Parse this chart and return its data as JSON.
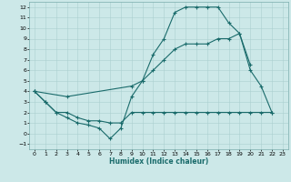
{
  "xlabel": "Humidex (Indice chaleur)",
  "bg_color": "#cce8e8",
  "grid_color": "#aacfcf",
  "line_color": "#1a6b6b",
  "xlim": [
    -0.5,
    23.5
  ],
  "ylim": [
    -1.5,
    12.5
  ],
  "xticks": [
    0,
    1,
    2,
    3,
    4,
    5,
    6,
    7,
    8,
    9,
    10,
    11,
    12,
    13,
    14,
    15,
    16,
    17,
    18,
    19,
    20,
    21,
    22,
    23
  ],
  "yticks": [
    -1,
    0,
    1,
    2,
    3,
    4,
    5,
    6,
    7,
    8,
    9,
    10,
    11,
    12
  ],
  "line1_x": [
    0,
    1,
    2,
    3,
    4,
    5,
    6,
    7,
    8,
    9,
    10,
    11,
    12,
    13,
    14,
    15,
    16,
    17,
    18,
    19,
    20,
    21,
    22
  ],
  "line1_y": [
    4.0,
    3.0,
    2.0,
    1.5,
    1.0,
    0.8,
    0.5,
    -0.5,
    0.5,
    3.5,
    5.0,
    7.5,
    9.0,
    11.5,
    12.0,
    12.0,
    12.0,
    12.0,
    10.5,
    9.5,
    6.0,
    4.5,
    2.0
  ],
  "line2_x": [
    0,
    3,
    9,
    10,
    11,
    12,
    13,
    14,
    15,
    16,
    17,
    18,
    19,
    20
  ],
  "line2_y": [
    4.0,
    3.5,
    4.5,
    5.0,
    6.0,
    7.0,
    8.0,
    8.5,
    8.5,
    8.5,
    9.0,
    9.0,
    9.5,
    6.5
  ],
  "line3_x": [
    0,
    1,
    2,
    3,
    4,
    5,
    6,
    7,
    8,
    9,
    10,
    11,
    12,
    13,
    14,
    15,
    16,
    17,
    18,
    19,
    20,
    21,
    22
  ],
  "line3_y": [
    4.0,
    3.0,
    2.0,
    2.0,
    1.5,
    1.2,
    1.2,
    1.0,
    1.0,
    2.0,
    2.0,
    2.0,
    2.0,
    2.0,
    2.0,
    2.0,
    2.0,
    2.0,
    2.0,
    2.0,
    2.0,
    2.0,
    2.0
  ]
}
